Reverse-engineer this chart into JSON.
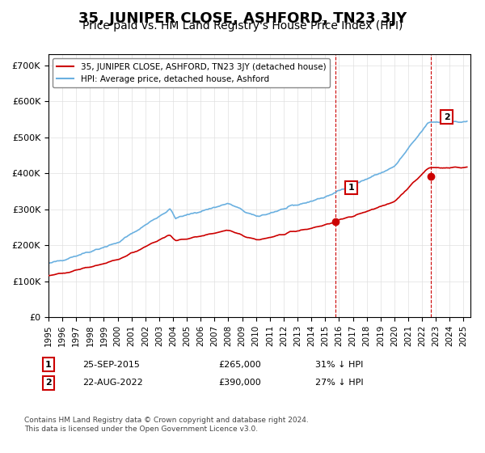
{
  "title": "35, JUNIPER CLOSE, ASHFORD, TN23 3JY",
  "subtitle": "Price paid vs. HM Land Registry's House Price Index (HPI)",
  "title_fontsize": 13,
  "subtitle_fontsize": 10,
  "ylabel_ticks": [
    "£0",
    "£100K",
    "£200K",
    "£300K",
    "£400K",
    "£500K",
    "£600K",
    "£700K"
  ],
  "ytick_values": [
    0,
    100000,
    200000,
    300000,
    400000,
    500000,
    600000,
    700000
  ],
  "ylim": [
    0,
    730000
  ],
  "xlim_start": 1995.0,
  "xlim_end": 2025.5,
  "hpi_color": "#6ab0e0",
  "price_color": "#cc0000",
  "marker1_date": 2015.73,
  "marker1_price": 265000,
  "marker1_label": "1",
  "marker2_date": 2022.64,
  "marker2_price": 390000,
  "marker2_label": "2",
  "legend_line1": "35, JUNIPER CLOSE, ASHFORD, TN23 3JY (detached house)",
  "legend_line2": "HPI: Average price, detached house, Ashford",
  "annotation1_box": "1",
  "annotation1_date": "25-SEP-2015",
  "annotation1_price": "£265,000",
  "annotation1_pct": "31% ↓ HPI",
  "annotation2_box": "2",
  "annotation2_date": "22-AUG-2022",
  "annotation2_price": "£390,000",
  "annotation2_pct": "27% ↓ HPI",
  "footer": "Contains HM Land Registry data © Crown copyright and database right 2024.\nThis data is licensed under the Open Government Licence v3.0.",
  "vline_color": "#cc0000",
  "vline_style": "--",
  "background_color": "#ffffff",
  "grid_color": "#e0e0e0"
}
